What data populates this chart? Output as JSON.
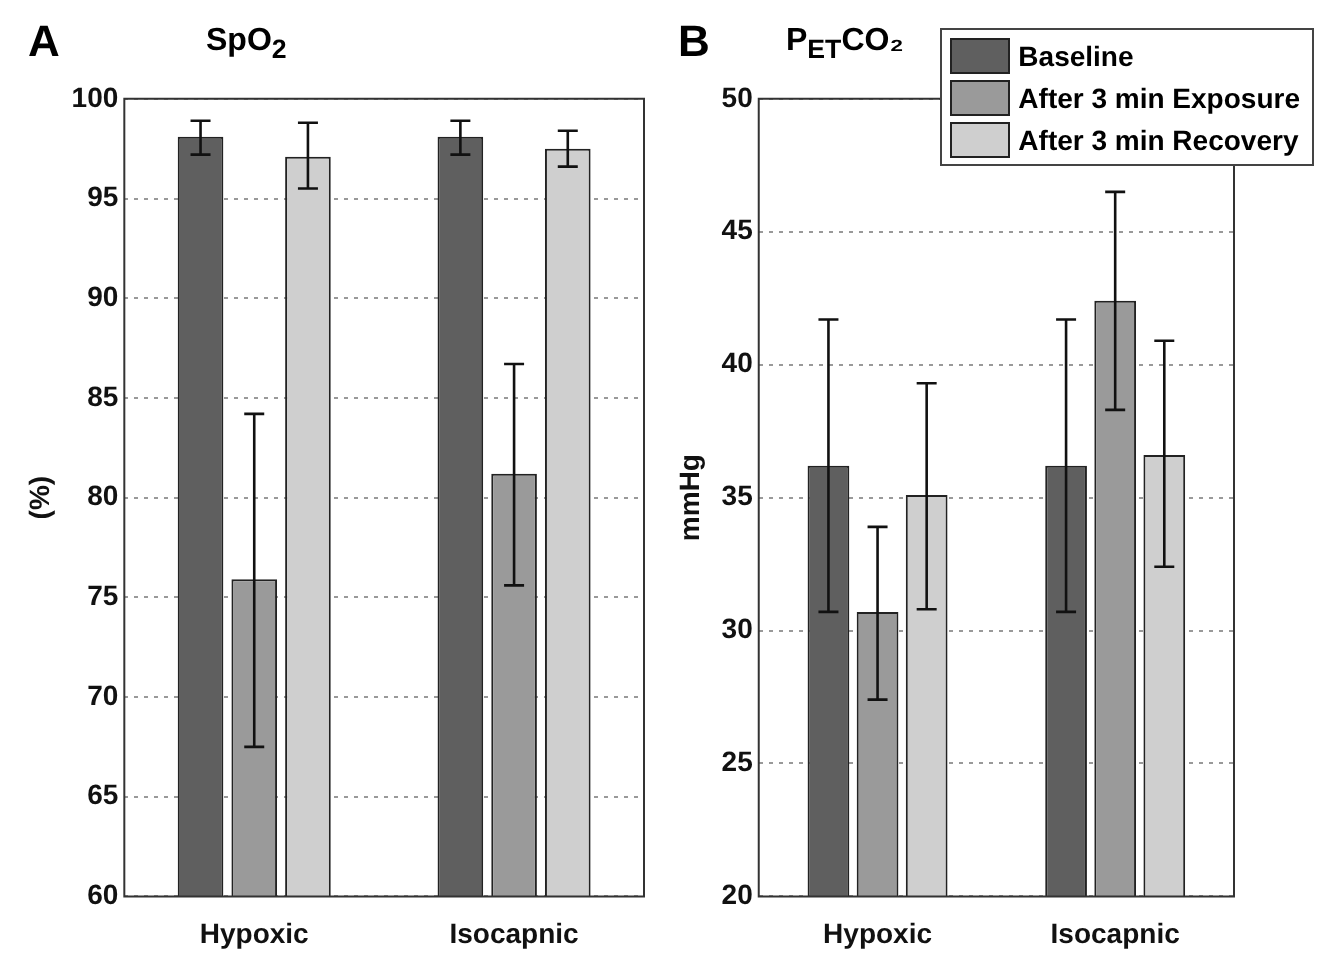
{
  "chart_data": [
    {
      "type": "bar",
      "title": "SpO$_{2}$",
      "ylabel": "(%)",
      "annotations": [
        "A"
      ],
      "categories": [
        "Hypoxic",
        "Isocapnic"
      ],
      "ylim": [
        60,
        100
      ],
      "yticks": [
        60,
        65,
        70,
        75,
        80,
        85,
        90,
        95,
        100
      ],
      "grid": "y",
      "legend": false,
      "series": [
        {
          "color": "#5f5f5f",
          "values": [
            98.1,
            98.1
          ],
          "errors": [
            [
              97.2,
              98.9
            ],
            [
              97.2,
              98.9
            ]
          ]
        },
        {
          "color": "#9a9a9a",
          "values": [
            75.9,
            81.2
          ],
          "errors": [
            [
              67.5,
              84.2
            ],
            [
              75.6,
              86.7
            ]
          ]
        },
        {
          "color": "#cfcfcf",
          "values": [
            97.1,
            97.5
          ],
          "errors": [
            [
              95.5,
              98.8
            ],
            [
              96.6,
              98.4
            ]
          ]
        }
      ]
    },
    {
      "type": "bar",
      "title": "P$_{ET}$CO₂",
      "ylabel": "mmHg",
      "annotations": [
        "B"
      ],
      "categories": [
        "Hypoxic",
        "Isocapnic"
      ],
      "ylim": [
        20,
        50
      ],
      "yticks": [
        20,
        25,
        30,
        35,
        40,
        45,
        50
      ],
      "grid": "y",
      "legend": "top right",
      "series": [
        {
          "name": "Baseline",
          "color": "#5f5f5f",
          "values": [
            36.2,
            36.2
          ],
          "errors": [
            [
              30.7,
              41.7
            ],
            [
              30.7,
              41.7
            ]
          ]
        },
        {
          "name": "After 3 min Exposure",
          "color": "#9a9a9a",
          "values": [
            30.7,
            42.4
          ],
          "errors": [
            [
              27.4,
              33.9
            ],
            [
              38.3,
              46.5
            ]
          ]
        },
        {
          "name": "After 3 min Recovery",
          "color": "#cfcfcf",
          "values": [
            35.1,
            36.6
          ],
          "errors": [
            [
              30.8,
              39.3
            ],
            [
              32.4,
              40.9
            ]
          ]
        }
      ]
    }
  ]
}
